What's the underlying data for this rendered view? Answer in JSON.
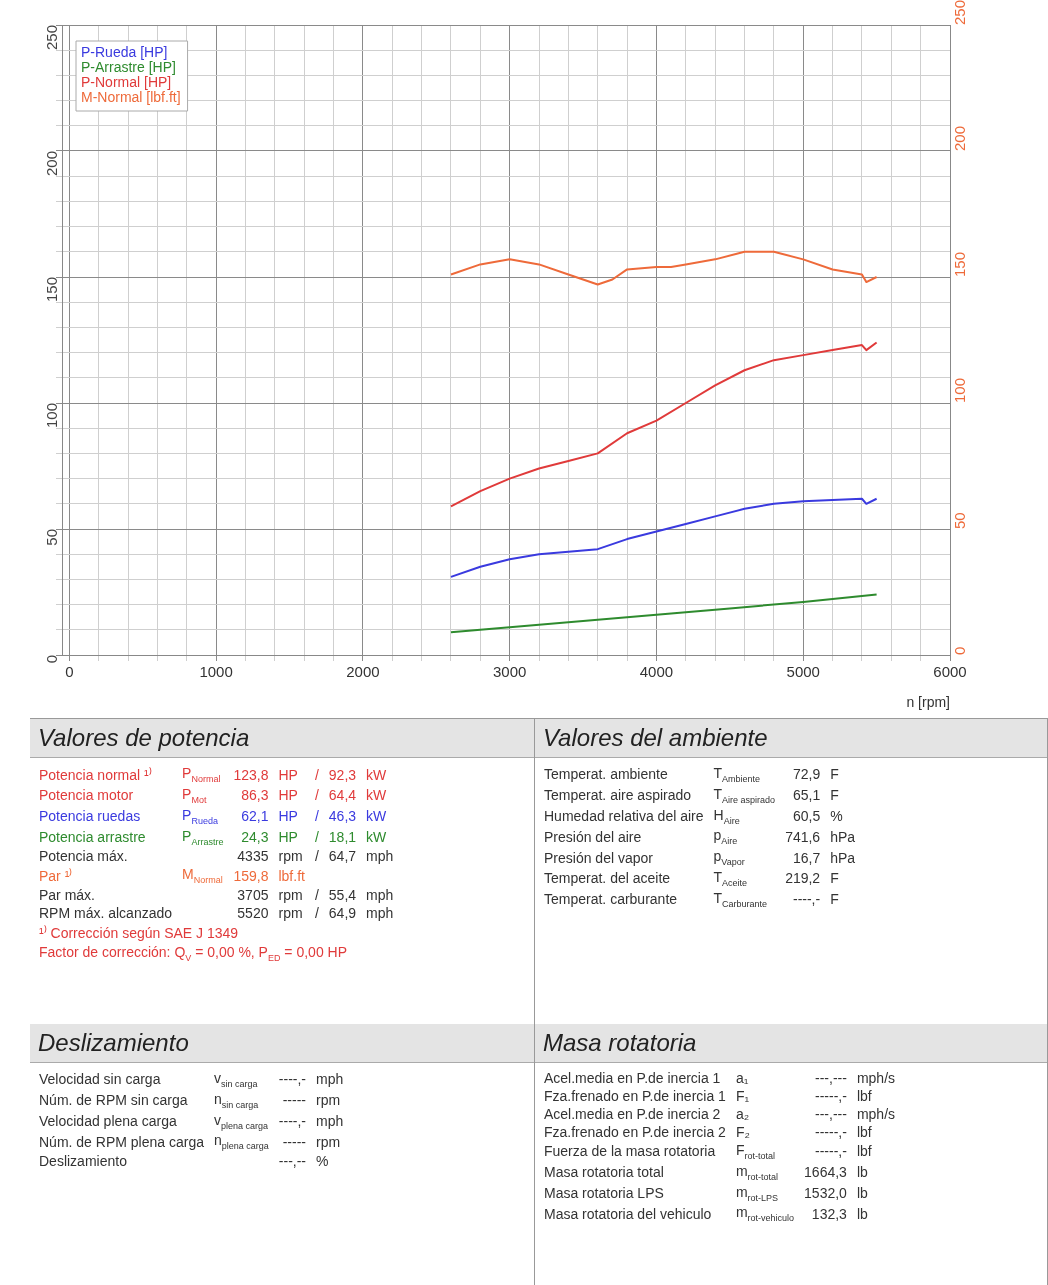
{
  "chart_data": [
    {
      "type": "line",
      "xlabel": "n [rpm]",
      "legend": "top left",
      "grid": true,
      "marker": "none",
      "line_style": "solid",
      "xlim": [
        -50,
        6000
      ],
      "xticks": [
        0,
        {
          "value": 200,
          "label": null
        },
        {
          "value": 400,
          "label": null
        },
        {
          "value": 600,
          "label": null
        },
        {
          "value": 800,
          "label": null
        },
        1000,
        {
          "value": 1200,
          "label": null
        },
        {
          "value": 1400,
          "label": null
        },
        {
          "value": 1600,
          "label": null
        },
        {
          "value": 1800,
          "label": null
        },
        2000,
        {
          "value": 2200,
          "label": null
        },
        {
          "value": 2400,
          "label": null
        },
        {
          "value": 2600,
          "label": null
        },
        {
          "value": 2800,
          "label": null
        },
        3000,
        {
          "value": 3200,
          "label": null
        },
        {
          "value": 3400,
          "label": null
        },
        {
          "value": 3600,
          "label": null
        },
        {
          "value": 3800,
          "label": null
        },
        4000,
        {
          "value": 4200,
          "label": null
        },
        {
          "value": 4400,
          "label": null
        },
        {
          "value": 4600,
          "label": null
        },
        {
          "value": 4800,
          "label": null
        },
        5000,
        {
          "value": 5200,
          "label": null
        },
        {
          "value": 5400,
          "label": null
        },
        {
          "value": 5600,
          "label": null
        },
        {
          "value": 5800,
          "label": null
        },
        6000
      ],
      "ylim": [
        0,
        250
      ],
      "yticks": [
        0,
        {
          "value": 10,
          "label": null
        },
        {
          "value": 20,
          "label": null
        },
        {
          "value": 30,
          "label": null
        },
        {
          "value": 40,
          "label": null
        },
        50,
        {
          "value": 60,
          "label": null
        },
        {
          "value": 70,
          "label": null
        },
        {
          "value": 80,
          "label": null
        },
        {
          "value": 90,
          "label": null
        },
        100,
        {
          "value": 110,
          "label": null
        },
        {
          "value": 120,
          "label": null
        },
        {
          "value": 130,
          "label": null
        },
        {
          "value": 140,
          "label": null
        },
        150,
        {
          "value": 160,
          "label": null
        },
        {
          "value": 170,
          "label": null
        },
        {
          "value": 180,
          "label": null
        },
        {
          "value": 190,
          "label": null
        },
        200,
        {
          "value": 210,
          "label": null
        },
        {
          "value": 220,
          "label": null
        },
        {
          "value": 230,
          "label": null
        },
        {
          "value": 240,
          "label": null
        },
        250
      ],
      "y2lim": [
        0,
        250
      ],
      "y2ticks": [
        0,
        50,
        100,
        150,
        200,
        250
      ],
      "series": [
        {
          "name": "P-Rueda [HP]",
          "color": "#3a3adf",
          "x": [
            2600,
            2800,
            3000,
            3200,
            3400,
            3600,
            3800,
            4000,
            4200,
            4400,
            4600,
            4800,
            5000,
            5200,
            5400,
            5430,
            5500
          ],
          "values": [
            31,
            35,
            38,
            40,
            41,
            42,
            46,
            49,
            52,
            55,
            58,
            60,
            61,
            61.5,
            62,
            60,
            62
          ]
        },
        {
          "name": "P-Arrastre [HP]",
          "color": "#2e8b2e",
          "x": [
            2600,
            3000,
            3500,
            4100,
            4500,
            5000,
            5500
          ],
          "values": [
            9,
            11,
            13.5,
            16.5,
            18.5,
            21,
            24
          ]
        },
        {
          "name": "P-Normal [HP]",
          "color": "#e03a3a",
          "x": [
            2600,
            2800,
            3000,
            3200,
            3400,
            3600,
            3800,
            4000,
            4200,
            4400,
            4600,
            4800,
            5000,
            5200,
            5400,
            5430,
            5500
          ],
          "values": [
            59,
            65,
            70,
            74,
            77,
            80,
            88,
            93,
            100,
            107,
            113,
            117,
            119,
            121,
            123,
            121,
            124
          ]
        },
        {
          "name": "M-Normal [lbf.ft]",
          "color": "#ee6a3a",
          "axis": "y2",
          "x": [
            2600,
            2800,
            3000,
            3200,
            3400,
            3600,
            3700,
            3800,
            4000,
            4100,
            4200,
            4400,
            4600,
            4800,
            5000,
            5200,
            5400,
            5430,
            5500
          ],
          "values": [
            151,
            155,
            157,
            155,
            151,
            147,
            149,
            153,
            154,
            154,
            155,
            157,
            160,
            160,
            157,
            153,
            151,
            148,
            150
          ]
        }
      ]
    },
    {
      "type": "other",
      "title": "Valores de potencia",
      "colors": [
        "#e03a3a",
        "#e03a3a",
        "#3a3adf",
        "#2e8b2e",
        "#333333",
        "#ee6a3a",
        "#333333",
        "#333333",
        "#e03a3a",
        "#e03a3a"
      ],
      "annotations": [
        "Potencia normal ¹⁾\tP$_{Normal}$\t123,8\tHP\t/\t92,3\tkW",
        "Potencia motor\tP$_{Mot}$\t86,3\tHP\t/\t64,4\tkW",
        "Potencia ruedas\tP$_{Rueda}$\t62,1\tHP\t/\t46,3\tkW",
        "Potencia arrastre\tP$_{Arrastre}$\t24,3\tHP\t/\t18,1\tkW",
        "Potencia máx.\t\t4335\trpm\t/\t64,7\tmph",
        "Par ¹⁾\tM$_{Normal}$\t159,8\tlbf.ft",
        "Par máx.\t\t3705\trpm\t/\t55,4\tmph",
        "RPM máx. alcanzado\t\t5520\trpm\t/\t64,9\tmph",
        "¹⁾ Corrección según SAE J 1349",
        "Factor de corrección: Q$_{V}$ =  0,00 %, P$_{ED}$ =  0,00 HP"
      ]
    },
    {
      "type": "other",
      "title": "Valores del ambiente",
      "annotations": [
        "Temperat. ambiente\tT$_{Ambiente}$\t72,9\tF",
        "Temperat. aire aspirado\tT$_{Aire aspirado}$\t65,1\tF",
        "Humedad relativa del aire\tH$_{Aire}$\t60,5\t%",
        "Presión del aire\tp$_{Aire}$\t741,6\thPa",
        "Presión del vapor\tp$_{Vapor}$\t16,7\thPa",
        "Temperat. del aceite\tT$_{Aceite}$\t219,2\tF",
        "Temperat. carburante\tT$_{Carburante}$\t----,-\tF"
      ]
    },
    {
      "type": "other",
      "title": "Deslizamiento",
      "annotations": [
        "Velocidad sin carga\tv$_{sin carga}$\t----,-\tmph",
        "Núm. de RPM sin carga\tn$_{sin carga}$\t-----\trpm",
        "Velocidad plena carga\tv$_{plena carga}$\t----,-\tmph",
        "Núm. de RPM plena carga\tn$_{plena carga}$\t-----\trpm",
        "Deslizamiento\t\t---,--\t%"
      ]
    },
    {
      "type": "other",
      "title": "Masa rotatoria",
      "annotations": [
        "Acel.media en P.de inercia 1\ta₁\t---,---\tmph/s",
        "Fza.frenado en P.de inercia 1\tF₁\t-----,-\tlbf",
        "Acel.media en P.de inercia 2\ta₂\t---,---\tmph/s",
        "Fza.frenado en P.de inercia 2\tF₂\t-----,-\tlbf",
        "Fuerza de la masa rotatoria\tF$_{rot-total}$\t-----,-\tlbf",
        "Masa rotatoria total\tm$_{rot-total}$\t1664,3\tlb",
        "Masa rotatoria LPS\tm$_{rot-LPS}$\t1532,0\tlb",
        "Masa rotatoria del vehiculo\tm$_{rot-vehiculo}$\t132,3\tlb"
      ]
    }
  ]
}
